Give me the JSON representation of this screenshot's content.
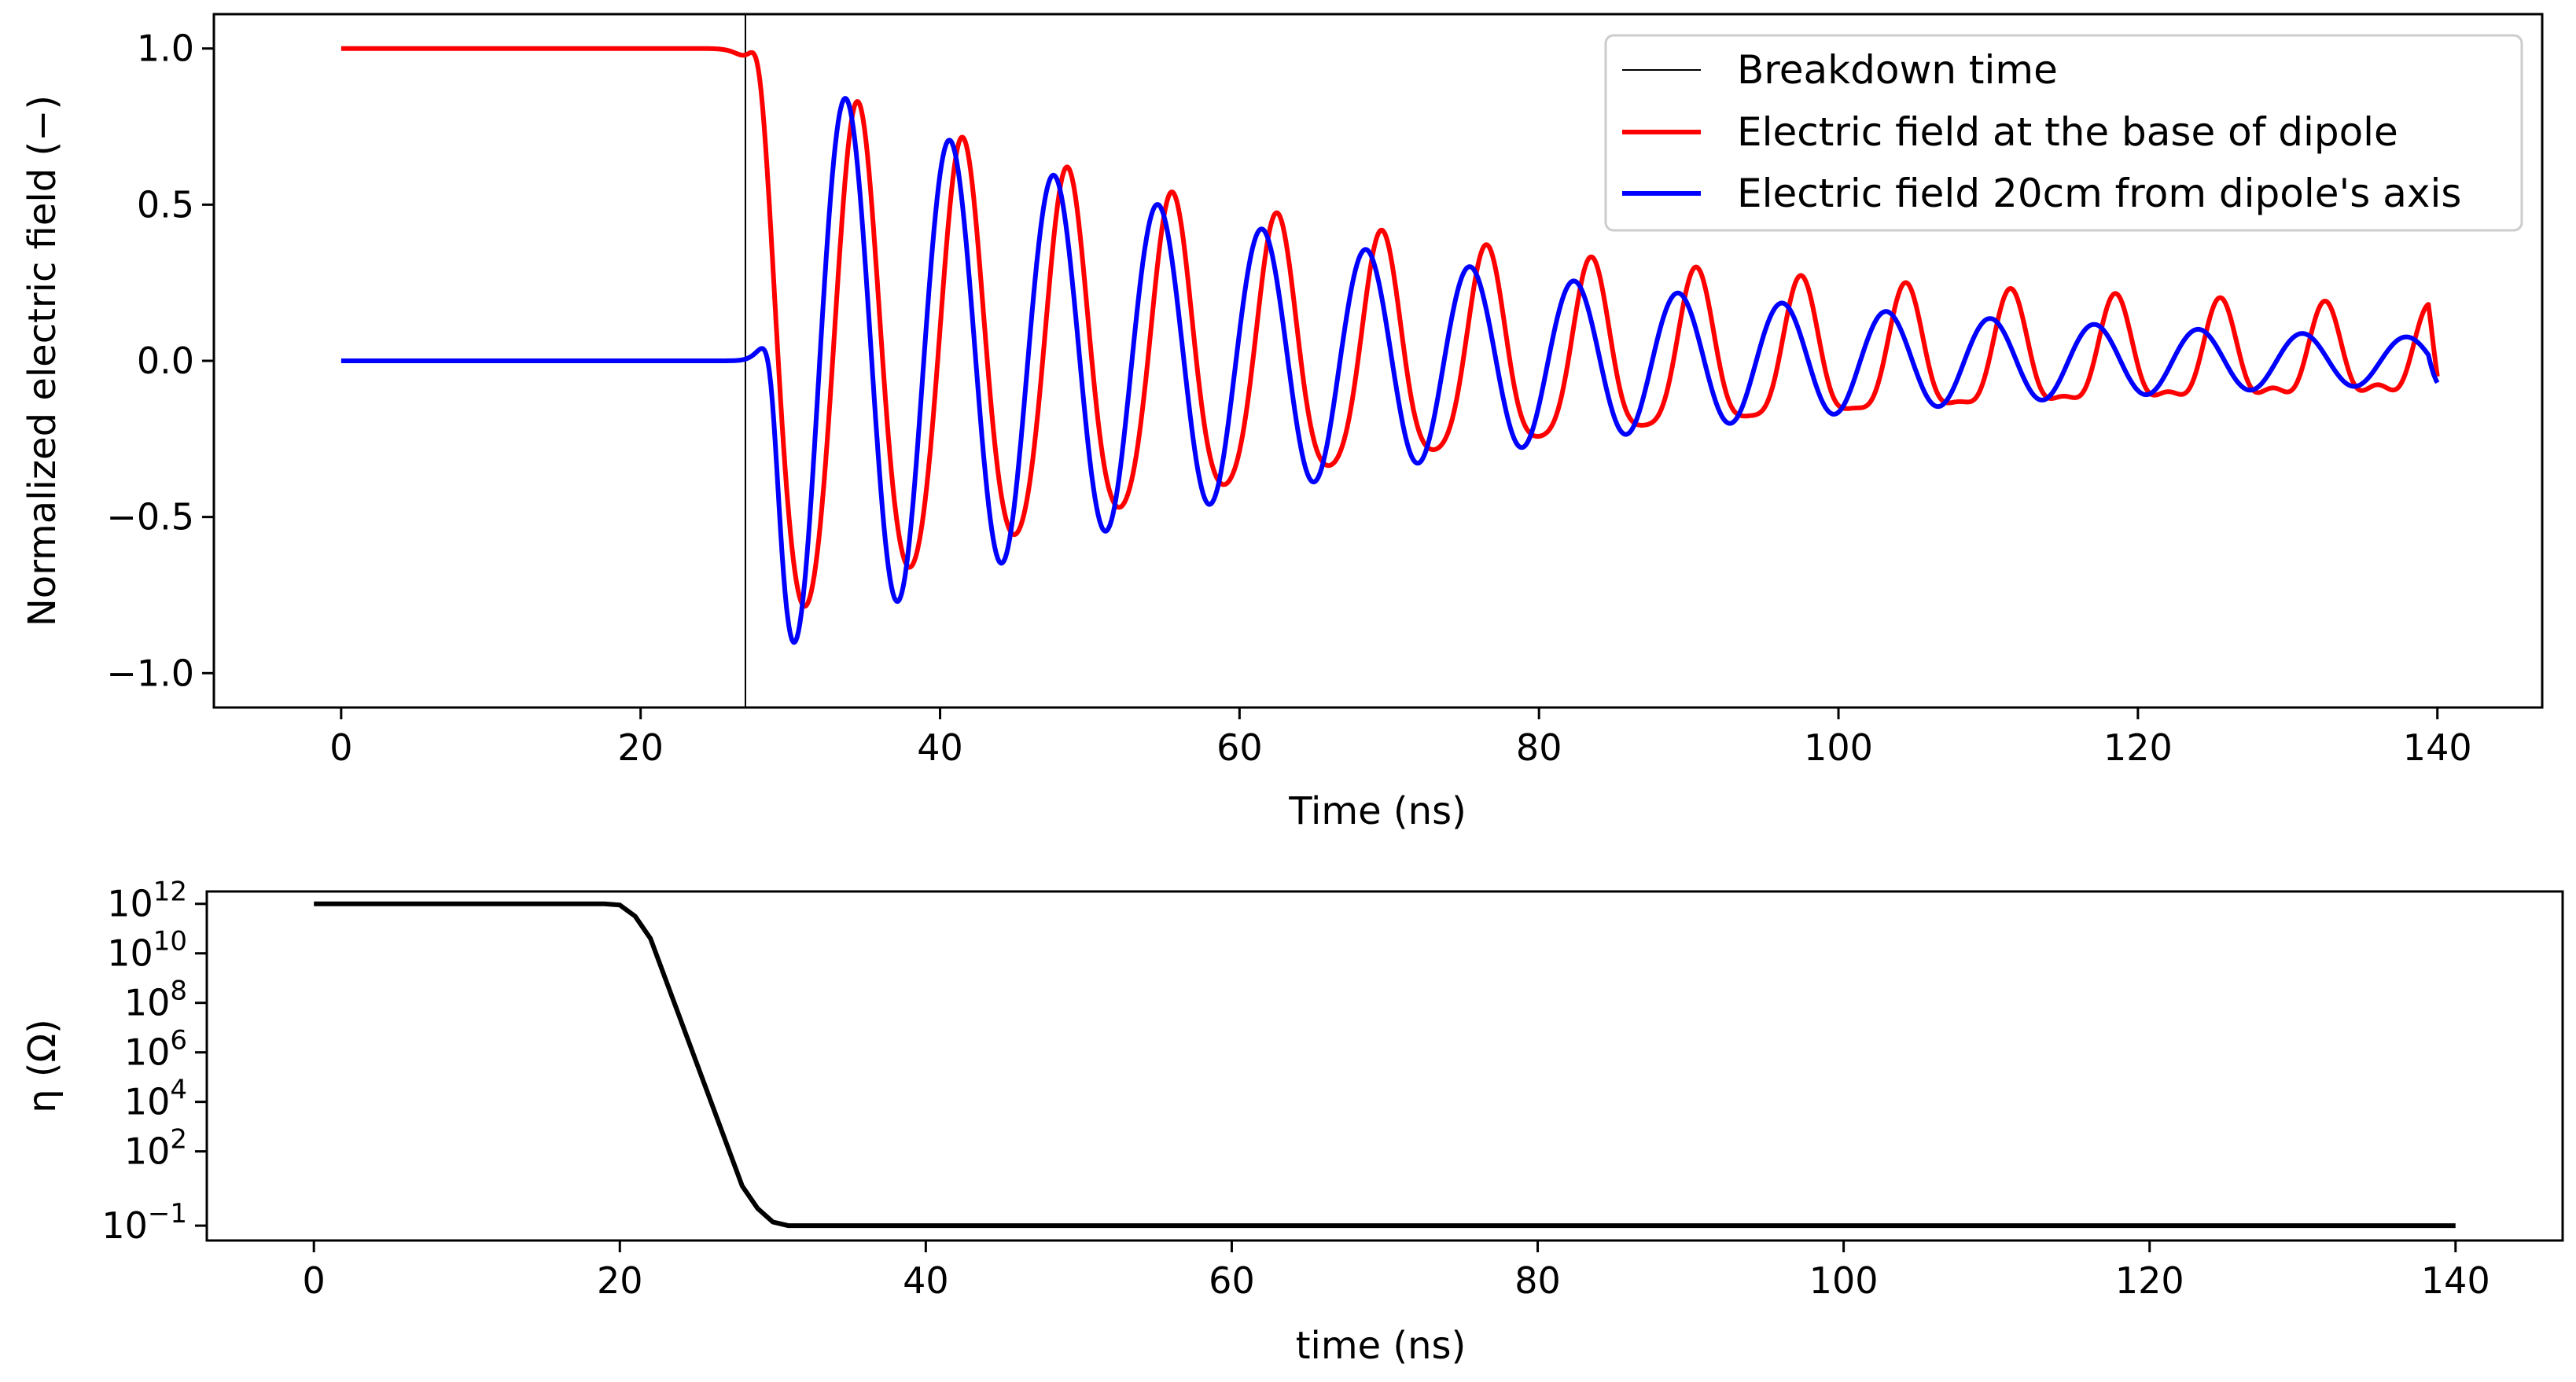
{
  "chart_data": [
    {
      "type": "line",
      "title": "",
      "xlabel": "Time (ns)",
      "ylabel": "Normalized electric field (−)",
      "xlim": [
        -8.5,
        147
      ],
      "ylim": [
        -1.11,
        1.11
      ],
      "xticks": [
        0,
        20,
        40,
        60,
        80,
        100,
        120,
        140
      ],
      "xtick_labels": [
        "0",
        "20",
        "40",
        "60",
        "80",
        "100",
        "120",
        "140"
      ],
      "yticks": [
        1.0,
        0.5,
        0.0,
        -0.5,
        -1.0
      ],
      "ytick_labels": [
        "1.0",
        "0.5",
        "0.0",
        "−0.5",
        "−1.0"
      ],
      "legend_position": "top-right",
      "vline": {
        "name": "Breakdown time",
        "x": 27,
        "color": "#000000"
      },
      "series": [
        {
          "name": "Electric field at the base of dipole",
          "color": "#ff0000",
          "pre_value": 1.0,
          "onset": 27.6,
          "envelope": {
            "a": 0.83,
            "tau": 39,
            "offset": 0.08
          },
          "period": 7.0,
          "phase_peak": 34.5,
          "harmonic_period": 3.5,
          "harmonic_amplitude": 0.055,
          "end": 140,
          "end_value": -0.05
        },
        {
          "name": "Electric field 20cm from dipole's axis",
          "color": "#0000ff",
          "pre_value": 0.0,
          "onset": 28.8,
          "envelope": {
            "a": 0.93,
            "tau": 39,
            "offset": 0.02
          },
          "period": 6.95,
          "phase_peak": 33.7,
          "end": 140,
          "end_value": -0.07
        }
      ]
    },
    {
      "type": "line",
      "title": "",
      "xlabel": "time (ns)",
      "ylabel": "η (Ω)",
      "yscale": "log",
      "xlim": [
        -7,
        147
      ],
      "ylim_log10": [
        -1.6,
        12.5
      ],
      "xticks": [
        0,
        20,
        40,
        60,
        80,
        100,
        120,
        140
      ],
      "xtick_labels": [
        "0",
        "20",
        "40",
        "60",
        "80",
        "100",
        "120",
        "140"
      ],
      "yticks_log10": [
        12,
        10,
        8,
        6,
        4,
        2,
        -1
      ],
      "ytick_bases": [
        "10",
        "10",
        "10",
        "10",
        "10",
        "10",
        "10"
      ],
      "ytick_exponents": [
        "12",
        "10",
        "8",
        "6",
        "4",
        "2",
        "−1"
      ],
      "series": [
        {
          "name": "eta",
          "color": "#000000",
          "points_log10": [
            [
              0,
              12
            ],
            [
              19.0,
              12
            ],
            [
              20.0,
              11.95
            ],
            [
              21.0,
              11.5
            ],
            [
              22.0,
              10.6
            ],
            [
              28.0,
              0.6
            ],
            [
              29.0,
              -0.3
            ],
            [
              30.0,
              -0.85
            ],
            [
              31.0,
              -1.0
            ],
            [
              140,
              -1.0
            ]
          ]
        }
      ]
    }
  ]
}
